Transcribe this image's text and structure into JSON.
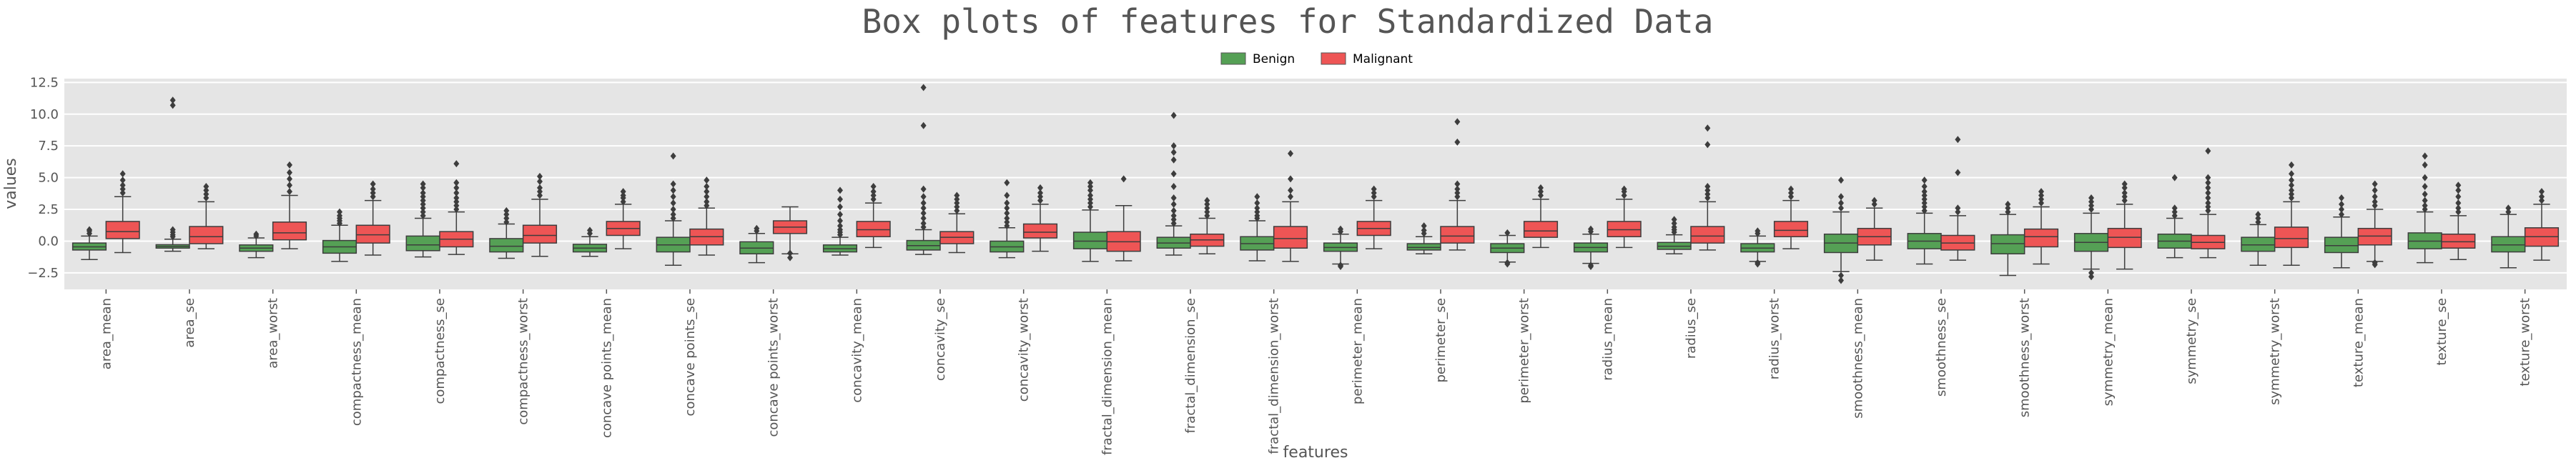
{
  "chart_data": {
    "type": "box",
    "title": "Box plots of features for Standardized Data",
    "xlabel": "features",
    "ylabel": "values",
    "ylim": [
      -3.8,
      12.8
    ],
    "yticks": [
      -2.5,
      0.0,
      2.5,
      5.0,
      7.5,
      10.0,
      12.5
    ],
    "ytick_labels": [
      "−2.5",
      "0.0",
      "2.5",
      "5.0",
      "7.5",
      "10.0",
      "12.5"
    ],
    "grid": true,
    "legend_position": "top-center",
    "categories": [
      "area_mean",
      "area_se",
      "area_worst",
      "compactness_mean",
      "compactness_se",
      "compactness_worst",
      "concave points_mean",
      "concave points_se",
      "concave points_worst",
      "concavity_mean",
      "concavity_se",
      "concavity_worst",
      "fractal_dimension_mean",
      "fractal_dimension_se",
      "fractal_dimension_worst",
      "perimeter_mean",
      "perimeter_se",
      "perimeter_worst",
      "radius_mean",
      "radius_se",
      "radius_worst",
      "smoothness_mean",
      "smoothness_se",
      "smoothness_worst",
      "symmetry_mean",
      "symmetry_se",
      "symmetry_worst",
      "texture_mean",
      "texture_se",
      "texture_worst"
    ],
    "series": [
      {
        "name": "Benign",
        "color": "#55a055",
        "boxes": [
          {
            "whislo": -1.45,
            "q1": -0.7,
            "med": -0.45,
            "q3": -0.15,
            "whishi": 0.4,
            "fliers": [
              0.6,
              0.8,
              0.9
            ]
          },
          {
            "whislo": -0.8,
            "q1": -0.55,
            "med": -0.42,
            "q3": -0.28,
            "whishi": 0.15,
            "fliers": [
              0.35,
              0.5,
              0.7,
              0.9,
              10.7,
              11.1
            ]
          },
          {
            "whislo": -1.3,
            "q1": -0.8,
            "med": -0.55,
            "q3": -0.3,
            "whishi": 0.25,
            "fliers": [
              0.4,
              0.55
            ]
          },
          {
            "whislo": -1.6,
            "q1": -0.95,
            "med": -0.45,
            "q3": 0.05,
            "whishi": 1.25,
            "fliers": [
              1.4,
              1.6,
              1.8,
              2.0,
              2.3
            ]
          },
          {
            "whislo": -1.25,
            "q1": -0.75,
            "med": -0.3,
            "q3": 0.4,
            "whishi": 1.8,
            "fliers": [
              2.0,
              2.3,
              2.6,
              2.9,
              3.2,
              3.5,
              3.8,
              4.2,
              4.5
            ]
          },
          {
            "whislo": -1.35,
            "q1": -0.85,
            "med": -0.4,
            "q3": 0.2,
            "whishi": 1.35,
            "fliers": [
              1.5,
              1.8,
              2.1,
              2.4
            ]
          },
          {
            "whislo": -1.2,
            "q1": -0.85,
            "med": -0.55,
            "q3": -0.25,
            "whishi": 0.35,
            "fliers": [
              0.6,
              0.85
            ]
          },
          {
            "whislo": -1.9,
            "q1": -0.85,
            "med": -0.3,
            "q3": 0.3,
            "whishi": 1.6,
            "fliers": [
              1.8,
              2.1,
              2.5,
              3.0,
              3.5,
              4.0,
              4.5,
              6.7
            ]
          },
          {
            "whislo": -1.7,
            "q1": -1.0,
            "med": -0.55,
            "q3": -0.05,
            "whishi": 0.6,
            "fliers": [
              0.8,
              1.0
            ]
          },
          {
            "whislo": -1.1,
            "q1": -0.85,
            "med": -0.6,
            "q3": -0.3,
            "whishi": 0.3,
            "fliers": [
              0.5,
              0.7,
              0.9,
              1.2,
              1.6,
              2.1,
              2.7,
              3.3,
              4.0
            ]
          },
          {
            "whislo": -1.05,
            "q1": -0.7,
            "med": -0.35,
            "q3": 0.05,
            "whishi": 0.9,
            "fliers": [
              1.1,
              1.4,
              1.8,
              2.2,
              2.6,
              3.0,
              3.5,
              4.1,
              9.1,
              12.1
            ]
          },
          {
            "whislo": -1.3,
            "q1": -0.85,
            "med": -0.45,
            "q3": 0.0,
            "whishi": 1.05,
            "fliers": [
              1.2,
              1.5,
              1.8,
              2.2,
              2.6,
              3.0,
              3.6,
              4.6
            ]
          },
          {
            "whislo": -1.6,
            "q1": -0.6,
            "med": 0.0,
            "q3": 0.7,
            "whishi": 2.45,
            "fliers": [
              2.7,
              3.0,
              3.3,
              3.6,
              4.0,
              4.3,
              4.6
            ]
          },
          {
            "whislo": -1.1,
            "q1": -0.55,
            "med": -0.15,
            "q3": 0.3,
            "whishi": 1.2,
            "fliers": [
              1.4,
              1.7,
              2.0,
              2.4,
              2.9,
              3.4,
              4.3,
              5.3,
              6.4,
              7.0,
              7.5,
              9.9
            ]
          },
          {
            "whislo": -1.55,
            "q1": -0.7,
            "med": -0.2,
            "q3": 0.35,
            "whishi": 1.6,
            "fliers": [
              1.8,
              2.0,
              2.3,
              2.6,
              3.0,
              3.5
            ]
          },
          {
            "whislo": -1.8,
            "q1": -0.8,
            "med": -0.5,
            "q3": -0.15,
            "whishi": 0.55,
            "fliers": [
              0.75,
              0.95,
              -1.9,
              -2.0
            ]
          },
          {
            "whislo": -1.0,
            "q1": -0.7,
            "med": -0.5,
            "q3": -0.2,
            "whishi": 0.35,
            "fliers": [
              0.6,
              0.85,
              1.2
            ]
          },
          {
            "whislo": -1.65,
            "q1": -0.9,
            "med": -0.55,
            "q3": -0.2,
            "whishi": 0.45,
            "fliers": [
              0.65,
              -1.7,
              -1.8
            ]
          },
          {
            "whislo": -1.75,
            "q1": -0.85,
            "med": -0.5,
            "q3": -0.15,
            "whishi": 0.55,
            "fliers": [
              0.75,
              0.95,
              -1.9,
              -2.0
            ]
          },
          {
            "whislo": -1.0,
            "q1": -0.65,
            "med": -0.4,
            "q3": -0.1,
            "whishi": 0.5,
            "fliers": [
              0.7,
              0.9,
              1.1,
              1.4,
              1.7
            ]
          },
          {
            "whislo": -1.6,
            "q1": -0.85,
            "med": -0.55,
            "q3": -0.2,
            "whishi": 0.4,
            "fliers": [
              0.6,
              0.8,
              -1.7,
              -1.8
            ]
          },
          {
            "whislo": -2.4,
            "q1": -0.9,
            "med": -0.15,
            "q3": 0.55,
            "whishi": 2.3,
            "fliers": [
              2.6,
              3.0,
              3.5,
              4.8,
              -2.7,
              -3.1
            ]
          },
          {
            "whislo": -1.8,
            "q1": -0.6,
            "med": 0.0,
            "q3": 0.6,
            "whishi": 2.2,
            "fliers": [
              2.4,
              2.7,
              3.0,
              3.3,
              3.6,
              3.9,
              4.3,
              4.8
            ]
          },
          {
            "whislo": -2.7,
            "q1": -1.0,
            "med": -0.2,
            "q3": 0.5,
            "whishi": 2.1,
            "fliers": [
              2.3,
              2.6,
              2.9
            ]
          },
          {
            "whislo": -2.2,
            "q1": -0.8,
            "med": -0.1,
            "q3": 0.6,
            "whishi": 2.2,
            "fliers": [
              2.5,
              2.8,
              3.1,
              3.4,
              -2.5,
              -2.8
            ]
          },
          {
            "whislo": -1.3,
            "q1": -0.55,
            "med": 0.0,
            "q3": 0.55,
            "whishi": 1.8,
            "fliers": [
              2.0,
              2.3,
              2.6,
              5.0
            ]
          },
          {
            "whislo": -1.9,
            "q1": -0.8,
            "med": -0.3,
            "q3": 0.3,
            "whishi": 1.3,
            "fliers": [
              1.5,
              1.8,
              2.1
            ]
          },
          {
            "whislo": -2.1,
            "q1": -0.9,
            "med": -0.35,
            "q3": 0.3,
            "whishi": 1.9,
            "fliers": [
              2.1,
              2.5,
              2.9,
              3.4
            ]
          },
          {
            "whislo": -1.7,
            "q1": -0.6,
            "med": 0.0,
            "q3": 0.65,
            "whishi": 2.3,
            "fliers": [
              2.5,
              2.8,
              3.2,
              3.7,
              4.3,
              5.0,
              6.0,
              6.7
            ]
          },
          {
            "whislo": -2.1,
            "q1": -0.85,
            "med": -0.3,
            "q3": 0.35,
            "whishi": 2.1,
            "fliers": [
              2.3,
              2.6
            ]
          }
        ]
      },
      {
        "name": "Malignant",
        "color": "#ee5555",
        "boxes": [
          {
            "whislo": -0.9,
            "q1": 0.2,
            "med": 0.75,
            "q3": 1.55,
            "whishi": 3.5,
            "fliers": [
              3.8,
              4.1,
              4.4,
              4.8,
              5.3
            ]
          },
          {
            "whislo": -0.6,
            "q1": -0.2,
            "med": 0.35,
            "q3": 1.15,
            "whishi": 3.1,
            "fliers": [
              3.4,
              3.7,
              4.0,
              4.3
            ]
          },
          {
            "whislo": -0.6,
            "q1": 0.1,
            "med": 0.65,
            "q3": 1.5,
            "whishi": 3.6,
            "fliers": [
              3.9,
              4.4,
              4.9,
              5.4,
              6.0
            ]
          },
          {
            "whislo": -1.1,
            "q1": -0.15,
            "med": 0.5,
            "q3": 1.25,
            "whishi": 3.2,
            "fliers": [
              3.5,
              3.8,
              4.1,
              4.5
            ]
          },
          {
            "whislo": -1.05,
            "q1": -0.45,
            "med": 0.15,
            "q3": 0.75,
            "whishi": 2.3,
            "fliers": [
              2.5,
              2.8,
              3.1,
              3.4,
              3.8,
              4.2,
              4.6,
              6.1
            ]
          },
          {
            "whislo": -1.2,
            "q1": -0.15,
            "med": 0.45,
            "q3": 1.25,
            "whishi": 3.3,
            "fliers": [
              3.6,
              3.9,
              4.2,
              4.7,
              5.1
            ]
          },
          {
            "whislo": -0.6,
            "q1": 0.45,
            "med": 1.0,
            "q3": 1.55,
            "whishi": 2.9,
            "fliers": [
              3.1,
              3.4,
              3.6,
              3.9
            ]
          },
          {
            "whislo": -1.1,
            "q1": -0.3,
            "med": 0.35,
            "q3": 0.95,
            "whishi": 2.6,
            "fliers": [
              2.8,
              3.1,
              3.5,
              3.9,
              4.3,
              4.8
            ]
          },
          {
            "whislo": -1.0,
            "q1": 0.6,
            "med": 1.1,
            "q3": 1.6,
            "whishi": 2.7,
            "fliers": [
              -0.95,
              -1.3
            ]
          },
          {
            "whislo": -0.5,
            "q1": 0.35,
            "med": 0.9,
            "q3": 1.55,
            "whishi": 3.0,
            "fliers": [
              3.3,
              3.6,
              3.9,
              4.3
            ]
          },
          {
            "whislo": -0.9,
            "q1": -0.2,
            "med": 0.3,
            "q3": 0.75,
            "whishi": 2.15,
            "fliers": [
              2.4,
              2.7,
              3.0,
              3.3,
              3.6
            ]
          },
          {
            "whislo": -0.8,
            "q1": 0.25,
            "med": 0.7,
            "q3": 1.35,
            "whishi": 2.9,
            "fliers": [
              3.2,
              3.5,
              3.8,
              4.2
            ]
          },
          {
            "whislo": -1.55,
            "q1": -0.8,
            "med": -0.05,
            "q3": 0.75,
            "whishi": 2.8,
            "fliers": [
              4.9
            ]
          },
          {
            "whislo": -1.0,
            "q1": -0.4,
            "med": 0.1,
            "q3": 0.55,
            "whishi": 1.8,
            "fliers": [
              2.0,
              2.3,
              2.6,
              2.9,
              3.2
            ]
          },
          {
            "whislo": -1.6,
            "q1": -0.55,
            "med": 0.2,
            "q3": 1.15,
            "whishi": 3.1,
            "fliers": [
              3.5,
              4.0,
              4.9,
              6.9
            ]
          },
          {
            "whislo": -0.6,
            "q1": 0.45,
            "med": 1.0,
            "q3": 1.55,
            "whishi": 3.2,
            "fliers": [
              3.5,
              3.8,
              4.1
            ]
          },
          {
            "whislo": -0.7,
            "q1": -0.15,
            "med": 0.4,
            "q3": 1.15,
            "whishi": 3.2,
            "fliers": [
              3.5,
              3.8,
              4.1,
              4.5,
              7.8,
              9.4
            ]
          },
          {
            "whislo": -0.5,
            "q1": 0.3,
            "med": 0.8,
            "q3": 1.55,
            "whishi": 3.3,
            "fliers": [
              3.6,
              3.9,
              4.2
            ]
          },
          {
            "whislo": -0.5,
            "q1": 0.35,
            "med": 0.9,
            "q3": 1.55,
            "whishi": 3.3,
            "fliers": [
              3.6,
              3.9,
              4.1
            ]
          },
          {
            "whislo": -0.7,
            "q1": -0.15,
            "med": 0.4,
            "q3": 1.15,
            "whishi": 3.1,
            "fliers": [
              3.4,
              3.7,
              4.0,
              4.3,
              7.6,
              8.9
            ]
          },
          {
            "whislo": -0.6,
            "q1": 0.35,
            "med": 0.85,
            "q3": 1.55,
            "whishi": 3.2,
            "fliers": [
              3.5,
              3.8,
              4.1
            ]
          },
          {
            "whislo": -1.5,
            "q1": -0.3,
            "med": 0.35,
            "q3": 1.0,
            "whishi": 2.6,
            "fliers": [
              2.9,
              3.2
            ]
          },
          {
            "whislo": -1.5,
            "q1": -0.7,
            "med": -0.15,
            "q3": 0.45,
            "whishi": 2.0,
            "fliers": [
              2.3,
              2.6,
              5.4,
              8.0
            ]
          },
          {
            "whislo": -1.8,
            "q1": -0.45,
            "med": 0.35,
            "q3": 0.95,
            "whishi": 2.7,
            "fliers": [
              3.0,
              3.3,
              3.6,
              3.9
            ]
          },
          {
            "whislo": -2.2,
            "q1": -0.5,
            "med": 0.3,
            "q3": 1.0,
            "whishi": 2.9,
            "fliers": [
              3.2,
              3.5,
              3.8,
              4.2,
              4.5
            ]
          },
          {
            "whislo": -1.3,
            "q1": -0.6,
            "med": -0.1,
            "q3": 0.45,
            "whishi": 2.1,
            "fliers": [
              2.4,
              2.7,
              3.0,
              3.4,
              3.8,
              4.2,
              4.6,
              5.0,
              7.1
            ]
          },
          {
            "whislo": -1.9,
            "q1": -0.5,
            "med": 0.2,
            "q3": 1.1,
            "whishi": 3.1,
            "fliers": [
              3.4,
              3.7,
              4.0,
              4.4,
              4.8,
              5.3,
              6.0
            ]
          },
          {
            "whislo": -1.6,
            "q1": -0.3,
            "med": 0.4,
            "q3": 1.0,
            "whishi": 2.5,
            "fliers": [
              2.8,
              3.1,
              3.5,
              4.0,
              4.5,
              -1.7,
              -1.85
            ]
          },
          {
            "whislo": -1.45,
            "q1": -0.55,
            "med": -0.05,
            "q3": 0.55,
            "whishi": 2.0,
            "fliers": [
              2.3,
              2.6,
              3.0,
              3.5,
              4.0,
              4.4
            ]
          },
          {
            "whislo": -1.5,
            "q1": -0.4,
            "med": 0.35,
            "q3": 1.05,
            "whishi": 2.9,
            "fliers": [
              3.2,
              3.5,
              3.9
            ]
          }
        ]
      }
    ]
  }
}
